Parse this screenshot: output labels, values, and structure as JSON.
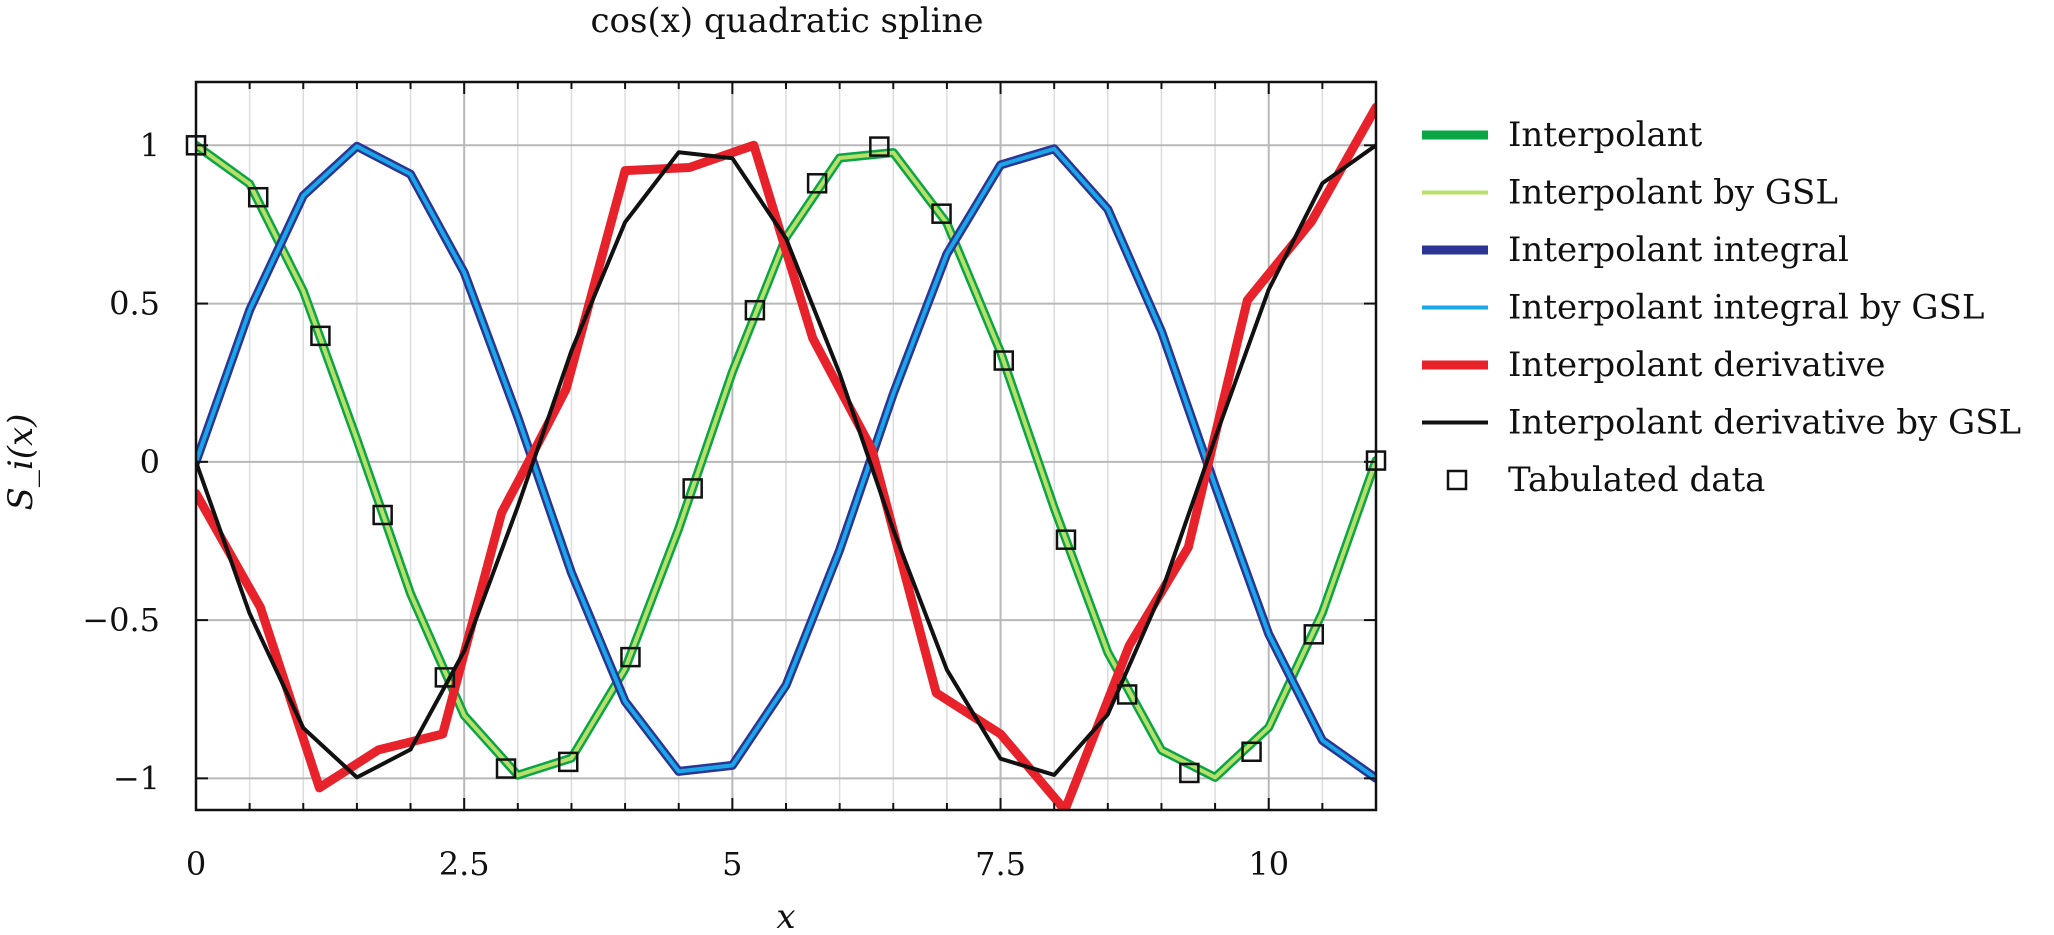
{
  "chart_data": {
    "type": "line",
    "title": "cos(x) quadratic spline",
    "xlabel": "x",
    "ylabel": "S_i(x)",
    "xlim": [
      0,
      11
    ],
    "ylim": [
      -1.1,
      1.2
    ],
    "grid": true,
    "legend_position": "right",
    "x_ticks": [
      0,
      2.5,
      5,
      7.5,
      10
    ],
    "x_tick_labels": [
      "0",
      "2.5",
      "5",
      "7.5",
      "10"
    ],
    "y_ticks": [
      1,
      0.5,
      0,
      -0.5,
      -1
    ],
    "y_tick_labels": [
      "1",
      "0.5",
      "0",
      "−0.5",
      "−1"
    ],
    "series": [
      {
        "name": "Interpolant",
        "color": "#0aa544",
        "style": "thick",
        "x": [
          0,
          0.5,
          1,
          1.5,
          2,
          2.5,
          3,
          3.5,
          4,
          4.5,
          5,
          5.5,
          6,
          6.5,
          7,
          7.5,
          8,
          8.5,
          9,
          9.5,
          10,
          10.5,
          11
        ],
        "y": [
          1.0,
          0.878,
          0.54,
          0.071,
          -0.416,
          -0.801,
          -0.99,
          -0.936,
          -0.654,
          -0.211,
          0.284,
          0.709,
          0.96,
          0.977,
          0.754,
          0.347,
          -0.146,
          -0.602,
          -0.911,
          -0.997,
          -0.839,
          -0.476,
          0.004
        ]
      },
      {
        "name": "Interpolant by GSL",
        "color": "#b9df6a",
        "style": "thin",
        "x": [
          0,
          0.5,
          1,
          1.5,
          2,
          2.5,
          3,
          3.5,
          4,
          4.5,
          5,
          5.5,
          6,
          6.5,
          7,
          7.5,
          8,
          8.5,
          9,
          9.5,
          10,
          10.5,
          11
        ],
        "y": [
          1.0,
          0.878,
          0.54,
          0.071,
          -0.416,
          -0.801,
          -0.99,
          -0.936,
          -0.654,
          -0.211,
          0.284,
          0.709,
          0.96,
          0.977,
          0.754,
          0.347,
          -0.146,
          -0.602,
          -0.911,
          -0.997,
          -0.839,
          -0.476,
          0.004
        ]
      },
      {
        "name": "Interpolant integral",
        "color": "#2b3694",
        "style": "thick",
        "x": [
          0,
          0.5,
          1,
          1.5,
          2,
          2.5,
          3,
          3.5,
          4,
          4.5,
          5,
          5.5,
          6,
          6.5,
          7,
          7.5,
          8,
          8.5,
          9,
          9.5,
          10,
          10.5,
          11
        ],
        "y": [
          0.0,
          0.479,
          0.841,
          0.997,
          0.909,
          0.598,
          0.141,
          -0.351,
          -0.757,
          -0.978,
          -0.959,
          -0.706,
          -0.279,
          0.215,
          0.657,
          0.938,
          0.989,
          0.798,
          0.412,
          -0.075,
          -0.544,
          -0.88,
          -1.0
        ]
      },
      {
        "name": "Interpolant integral by GSL",
        "color": "#1aa7e8",
        "style": "thin",
        "x": [
          0,
          0.5,
          1,
          1.5,
          2,
          2.5,
          3,
          3.5,
          4,
          4.5,
          5,
          5.5,
          6,
          6.5,
          7,
          7.5,
          8,
          8.5,
          9,
          9.5,
          10,
          10.5,
          11
        ],
        "y": [
          0.0,
          0.479,
          0.841,
          0.997,
          0.909,
          0.598,
          0.141,
          -0.351,
          -0.757,
          -0.978,
          -0.959,
          -0.706,
          -0.279,
          0.215,
          0.657,
          0.938,
          0.989,
          0.798,
          0.412,
          -0.075,
          -0.544,
          -0.88,
          -1.0
        ]
      },
      {
        "name": "Interpolant derivative",
        "color": "#e8222b",
        "style": "thick",
        "x": [
          0,
          0.6,
          1.15,
          1.7,
          2.3,
          2.85,
          3.1,
          3.45,
          4.0,
          4.6,
          5.2,
          5.75,
          6.3,
          6.9,
          7.5,
          8.1,
          8.7,
          9.25,
          9.8,
          10.4,
          11.0
        ],
        "y": [
          -0.1,
          -0.46,
          -1.03,
          -0.91,
          -0.86,
          -0.16,
          0.0,
          0.23,
          0.92,
          0.93,
          1.0,
          0.39,
          0.04,
          -0.73,
          -0.86,
          -1.1,
          -0.58,
          -0.27,
          0.51,
          0.76,
          1.12
        ]
      },
      {
        "name": "Interpolant derivative by GSL",
        "color": "#111111",
        "style": "thin",
        "x": [
          0,
          0.5,
          1,
          1.5,
          2,
          2.5,
          3,
          3.5,
          4,
          4.5,
          5,
          5.5,
          6,
          6.5,
          7,
          7.5,
          8,
          8.5,
          9,
          9.5,
          10,
          10.5,
          11
        ],
        "y": [
          0.0,
          -0.479,
          -0.841,
          -0.997,
          -0.909,
          -0.598,
          -0.141,
          0.351,
          0.757,
          0.978,
          0.959,
          0.706,
          0.279,
          -0.215,
          -0.657,
          -0.938,
          -0.989,
          -0.798,
          -0.412,
          0.075,
          0.544,
          0.88,
          1.0
        ]
      },
      {
        "name": "Tabulated data",
        "color": "#111111",
        "style": "markers",
        "x": [
          0,
          0.58,
          1.16,
          1.74,
          2.32,
          2.89,
          3.47,
          4.05,
          4.63,
          5.21,
          5.79,
          6.37,
          6.95,
          7.53,
          8.11,
          8.68,
          9.26,
          9.84,
          10.42,
          11.0
        ],
        "y": [
          1.0,
          0.836,
          0.398,
          -0.168,
          -0.681,
          -0.969,
          -0.948,
          -0.617,
          -0.084,
          0.479,
          0.88,
          0.996,
          0.784,
          0.32,
          -0.246,
          -0.735,
          -0.983,
          -0.916,
          -0.545,
          0.004
        ]
      }
    ]
  }
}
